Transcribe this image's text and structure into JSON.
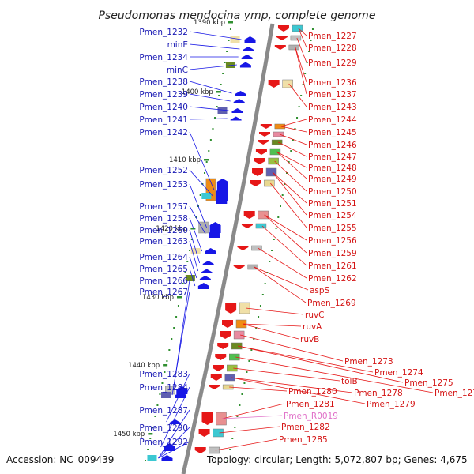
{
  "title": "Pseudomonas mendocina ymp, complete genome",
  "footer": {
    "accession": "Accession: NC_009439",
    "topology": "Topology: circular; Length: 5,072,807 bp; Genes: 4,675"
  },
  "scale_ticks": [
    {
      "label": "1390 kbp",
      "kbp": 1390
    },
    {
      "label": "1400 kbp",
      "kbp": 1400
    },
    {
      "label": "1410 kbp",
      "kbp": 1410
    },
    {
      "label": "1420 kbp",
      "kbp": 1420
    },
    {
      "label": "1430 kbp",
      "kbp": 1430
    },
    {
      "label": "1440 kbp",
      "kbp": 1440
    },
    {
      "label": "1450 kbp",
      "kbp": 1450
    }
  ],
  "genes_left": [
    "Pmen_1232",
    "minE",
    "Pmen_1234",
    "minC",
    "Pmen_1238",
    "Pmen_1239",
    "Pmen_1240",
    "Pmen_1241",
    "Pmen_1242",
    "Pmen_1252",
    "Pmen_1253",
    "Pmen_1257",
    "Pmen_1258",
    "Pmen_1260",
    "Pmen_1263",
    "Pmen_1264",
    "Pmen_1265",
    "Pmen_1266",
    "Pmen_1267",
    "Pmen_1283",
    "Pmen_1284",
    "Pmen_1287",
    "Pmen_1290",
    "Pmen_1292"
  ],
  "genes_right": [
    "Pmen_1227",
    "Pmen_1228",
    "Pmen_1229",
    "Pmen_1236",
    "Pmen_1237",
    "Pmen_1243",
    "Pmen_1244",
    "Pmen_1245",
    "Pmen_1246",
    "Pmen_1247",
    "Pmen_1248",
    "Pmen_1249",
    "Pmen_1250",
    "Pmen_1251",
    "Pmen_1254",
    "Pmen_1255",
    "Pmen_1256",
    "Pmen_1259",
    "Pmen_1261",
    "Pmen_1262",
    "aspS",
    "Pmen_1269",
    "ruvC",
    "ruvA",
    "ruvB",
    "Pmen_1273",
    "Pmen_1274",
    "Pmen_1275",
    "Pmen_1276",
    "tolB",
    "Pmen_1278",
    "Pmen_1279",
    "Pmen_1280",
    "Pmen_1281",
    "Pmen_R0019",
    "Pmen_1282",
    "Pmen_1285"
  ],
  "colors": {
    "forward_strand": "#1717e6",
    "reverse_strand": "#e61717",
    "rna_gene": "#e070c8",
    "backbone": "#8a8a8a",
    "tick": "#2f8f2f"
  }
}
